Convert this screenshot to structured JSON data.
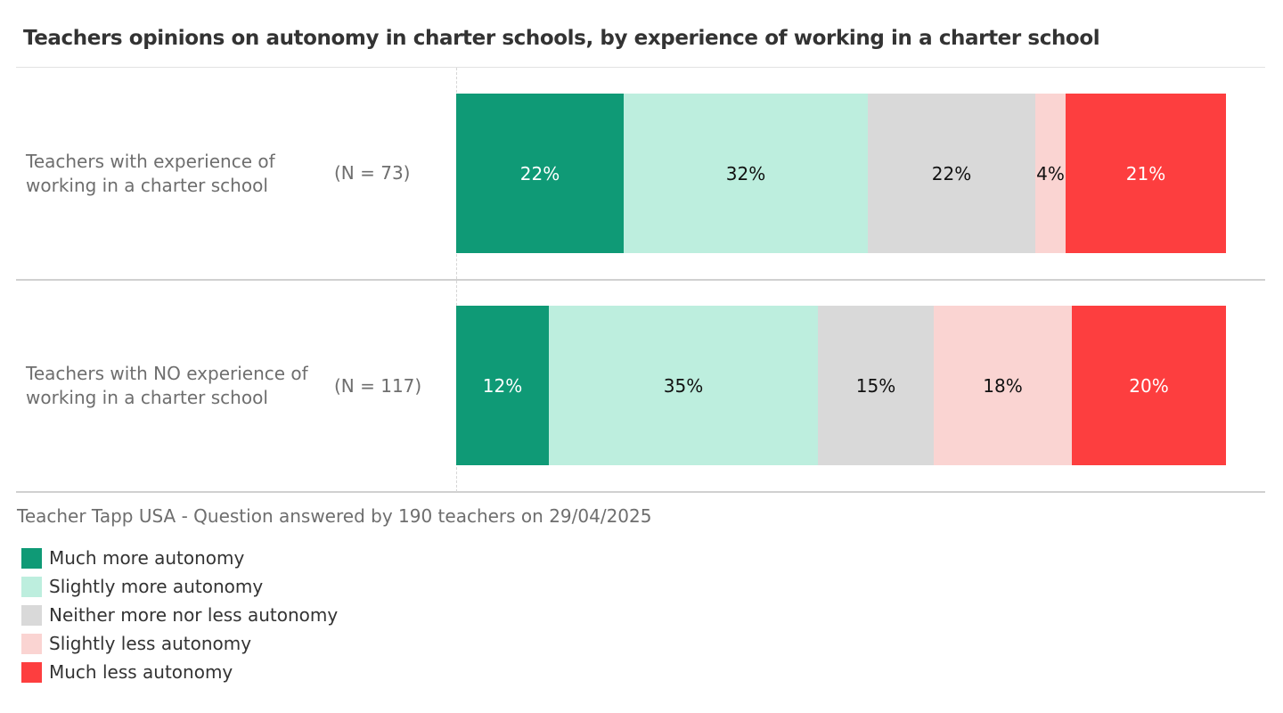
{
  "chart_data": {
    "type": "bar",
    "orientation": "horizontal",
    "stacked": true,
    "normalized_percent": true,
    "title": "Teachers opinions on autonomy in charter schools, by experience of working in a charter school",
    "categories": [
      "Teachers with experience of working in a charter school",
      "Teachers with NO experience of working in a charter school"
    ],
    "category_lines": [
      [
        "Teachers with experience of",
        "working in a charter school"
      ],
      [
        "Teachers with NO experience of",
        "working in a charter school"
      ]
    ],
    "sample_sizes": [
      "(N = 73)",
      "(N = 117)"
    ],
    "series": [
      {
        "name": "Much more autonomy",
        "color": "#0f9a76",
        "label_color": "#ffffff",
        "values": [
          22,
          12
        ],
        "labels": [
          "22%",
          "12%"
        ]
      },
      {
        "name": "Slightly more autonomy",
        "color": "#bdeede",
        "label_color": "#111111",
        "values": [
          32,
          35
        ],
        "labels": [
          "32%",
          "35%"
        ]
      },
      {
        "name": "Neither more nor less autonomy",
        "color": "#d9d9d9",
        "label_color": "#111111",
        "values": [
          22,
          15
        ],
        "labels": [
          "22%",
          "15%"
        ]
      },
      {
        "name": "Slightly less autonomy",
        "color": "#fad4d2",
        "label_color": "#111111",
        "values": [
          4,
          18
        ],
        "labels": [
          "4%",
          "18%"
        ]
      },
      {
        "name": "Much less autonomy",
        "color": "#fd3e3f",
        "label_color": "#ffffff",
        "values": [
          21,
          20
        ],
        "labels": [
          "21%",
          "20%"
        ]
      }
    ],
    "legend_position": "bottom-left",
    "grid": false
  },
  "source": "Teacher Tapp USA - Question answered by 190 teachers on 29/04/2025",
  "colors": {
    "title": "#333333",
    "muted_text": "#6e6e6e",
    "divider": "#d0d0d0"
  }
}
